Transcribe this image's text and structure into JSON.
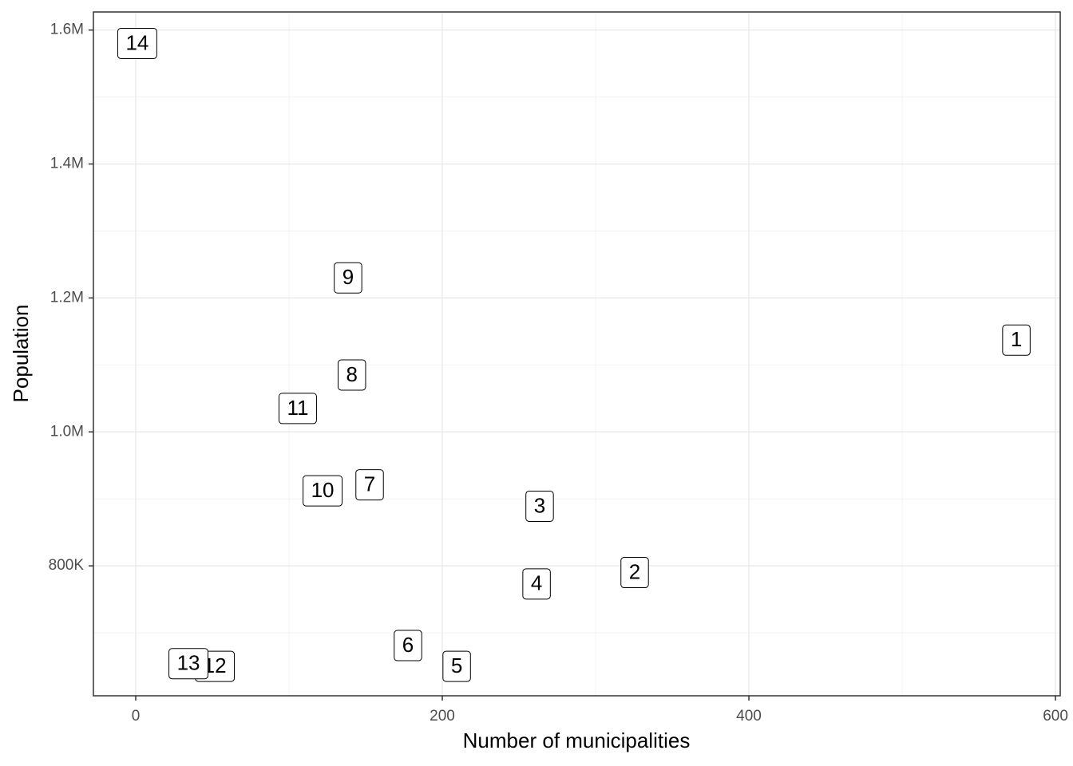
{
  "chart_data": {
    "type": "scatter",
    "x_label": "Number of municipalities",
    "y_label": "Population",
    "series": [
      {
        "name": null,
        "labels": [
          "1",
          "2",
          "3",
          "4",
          "5",
          "6",
          "7",
          "8",
          "9",
          "10",
          "11",
          "12",
          "13",
          "14"
        ],
        "x": [
          574.5,
          325.5,
          263.5,
          261.5,
          209.4,
          177.6,
          152.6,
          141,
          138.5,
          121.9,
          105.7,
          51.6,
          34.4,
          1
        ],
        "values": [
          1137000,
          790000,
          889000,
          773000,
          650000,
          681000,
          921000,
          1085000,
          1230000,
          912000,
          1035000,
          650000,
          654000,
          1580000
        ]
      }
    ],
    "xlim": [
      -27.6,
      603.1
    ],
    "ylim": [
      606000,
      1627000
    ],
    "xticks": [
      0,
      200,
      400,
      600
    ],
    "yticks": [
      {
        "value": 800000,
        "label": "800K"
      },
      {
        "value": 1000000,
        "label": "1.0M"
      },
      {
        "value": 1200000,
        "label": "1.2M"
      },
      {
        "value": 1400000,
        "label": "1.4M"
      },
      {
        "value": 1600000,
        "label": "1.6M"
      }
    ],
    "grid": true
  }
}
